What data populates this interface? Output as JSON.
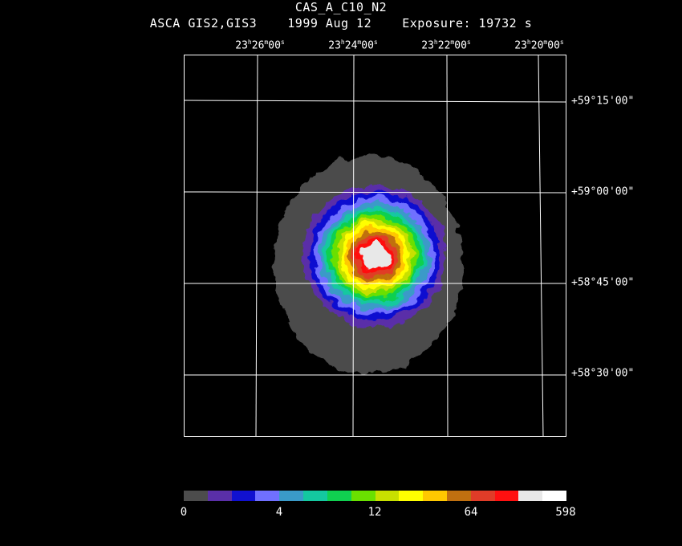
{
  "header": {
    "title": "CAS_A_C10_N2",
    "subtitle": "ASCA GIS2,GIS3    1999 Aug 12    Exposure: 19732 s"
  },
  "ra_labels": [
    {
      "h": "23",
      "m": "26",
      "s": "00"
    },
    {
      "h": "23",
      "m": "24",
      "s": "00"
    },
    {
      "h": "23",
      "m": "22",
      "s": "00"
    },
    {
      "h": "23",
      "m": "20",
      "s": "00"
    }
  ],
  "dec_labels": [
    "+59°15'00\"",
    "+59°00'00\"",
    "+58°45'00\"",
    "+58°30'00\""
  ],
  "colorbar": {
    "colors": [
      "#4c4c4c",
      "#5a2fa8",
      "#1111d0",
      "#7070ff",
      "#3a9ac8",
      "#14c8a0",
      "#10d050",
      "#6ae000",
      "#c8e000",
      "#ffff00",
      "#ffc800",
      "#c07010",
      "#e03c28",
      "#ff1010",
      "#e8e8e8",
      "#ffffff"
    ],
    "labels": [
      "0",
      "4",
      "12",
      "64",
      "598"
    ]
  },
  "image": {
    "levels": [
      "#4c4c4c",
      "#5a2fa8",
      "#1111d0",
      "#7070ff",
      "#3a9ac8",
      "#14c8a0",
      "#10d050",
      "#6ae000",
      "#c8e000",
      "#ffff00",
      "#ffc800",
      "#c07010",
      "#e03c28",
      "#ff1010",
      "#e8e8e8"
    ]
  }
}
